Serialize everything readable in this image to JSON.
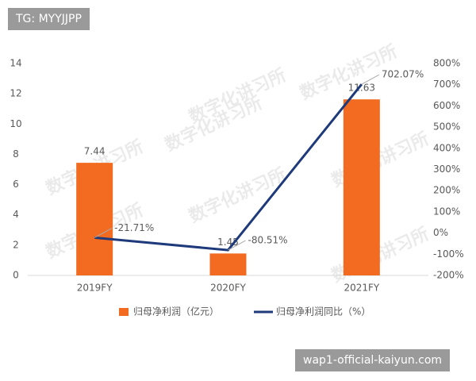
{
  "tag": "TG: MYYJJPP",
  "footer": "wap1-official-kaiyun.com",
  "watermark": "数字化讲习所",
  "chart_data": {
    "type": "bar-line",
    "categories": [
      "2019FY",
      "2020FY",
      "2021FY"
    ],
    "series": [
      {
        "name": "归母净利润（亿元）",
        "color": "#f26b21",
        "type": "bar",
        "values": [
          7.44,
          1.45,
          11.63
        ]
      },
      {
        "name": "归母净利润同比（%）",
        "color": "#1f3a7a",
        "type": "line",
        "axis": "y2",
        "values": [
          -21.71,
          -80.51,
          702.07
        ],
        "value_labels": [
          "-21.71%",
          "-80.51%",
          "702.07%"
        ]
      }
    ],
    "ylim": [
      0,
      14
    ],
    "yticks": [
      0,
      2,
      4,
      6,
      8,
      10,
      12,
      14
    ],
    "y2lim": [
      -200,
      800
    ],
    "y2ticks": [
      {
        "value": -200,
        "label": "-200%"
      },
      {
        "value": -100,
        "label": "-100%"
      },
      {
        "value": 0,
        "label": "0%"
      },
      {
        "value": 100,
        "label": "100%"
      },
      {
        "value": 200,
        "label": "200%"
      },
      {
        "value": 300,
        "label": "300%"
      },
      {
        "value": 400,
        "label": "400%"
      },
      {
        "value": 500,
        "label": "500%"
      },
      {
        "value": 600,
        "label": "600%"
      },
      {
        "value": 700,
        "label": "700%"
      },
      {
        "value": 800,
        "label": "800%"
      }
    ],
    "grid": false,
    "legend": "bottom"
  }
}
